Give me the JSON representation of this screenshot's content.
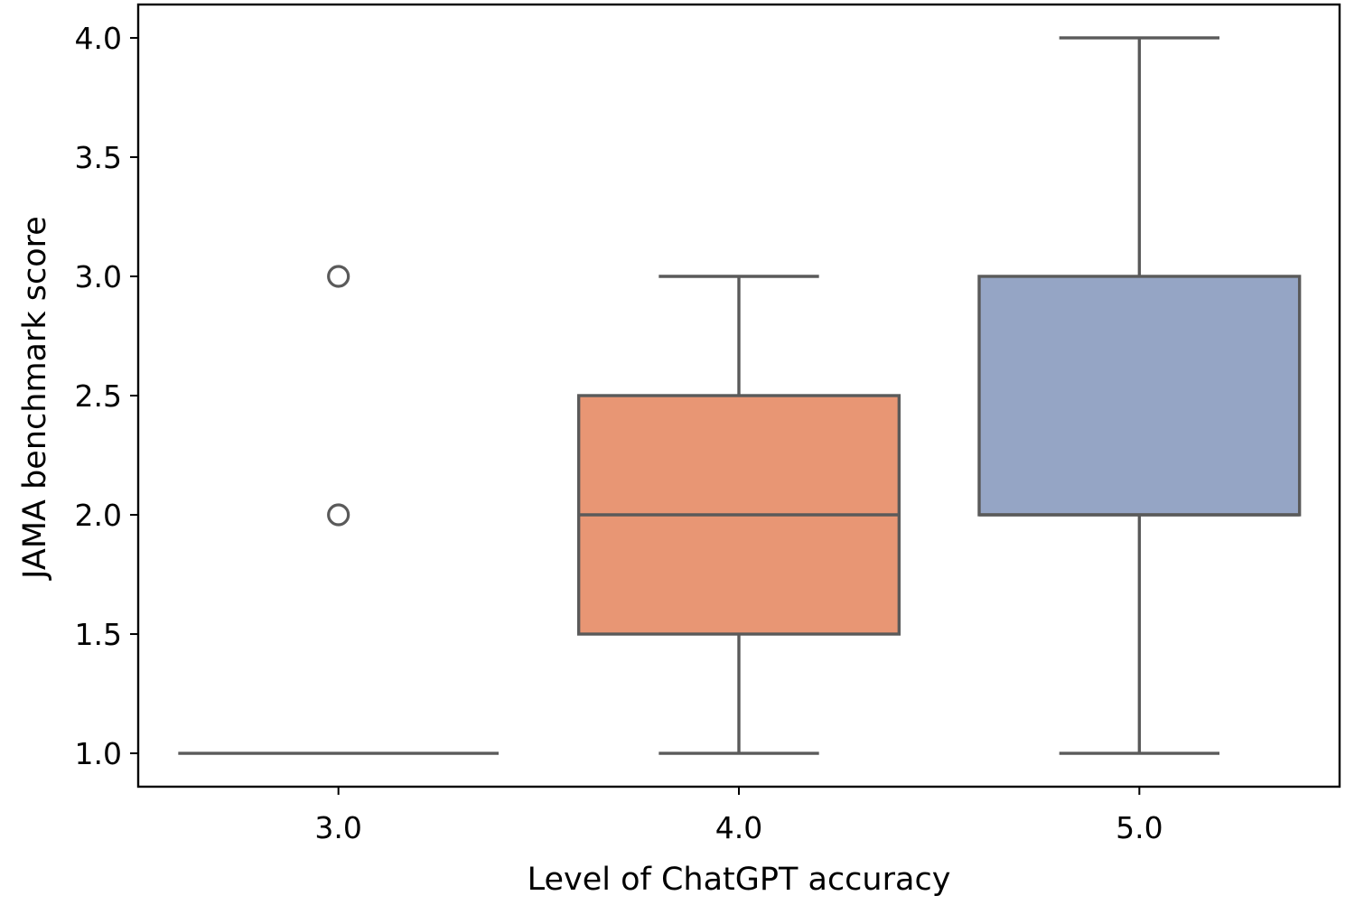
{
  "chart_data": {
    "type": "box",
    "title": "",
    "xlabel": "Level of ChatGPT accuracy",
    "ylabel": "JAMA benchmark score",
    "categories": [
      "3.0",
      "4.0",
      "5.0"
    ],
    "ylim": [
      0.86,
      4.14
    ],
    "yticks": [
      "1.0",
      "1.5",
      "2.0",
      "2.5",
      "3.0",
      "3.5",
      "4.0"
    ],
    "ytick_values": [
      1.0,
      1.5,
      2.0,
      2.5,
      3.0,
      3.5,
      4.0
    ],
    "grid": false,
    "legend": "none",
    "boxes": [
      {
        "category": "3.0",
        "whisker_low": 1.0,
        "q1": 1.0,
        "median": 1.0,
        "q3": 1.0,
        "whisker_high": 1.0,
        "outliers": [
          2.0,
          3.0
        ],
        "color": "#66c2a5"
      },
      {
        "category": "4.0",
        "whisker_low": 1.0,
        "q1": 1.5,
        "median": 2.0,
        "q3": 2.5,
        "whisker_high": 3.0,
        "outliers": [],
        "color": "#e89674"
      },
      {
        "category": "5.0",
        "whisker_low": 1.0,
        "q1": 2.0,
        "median": 2.0,
        "q3": 3.0,
        "whisker_high": 4.0,
        "outliers": [],
        "color": "#95a5c5"
      }
    ],
    "line_color": "#5a5a5a"
  }
}
